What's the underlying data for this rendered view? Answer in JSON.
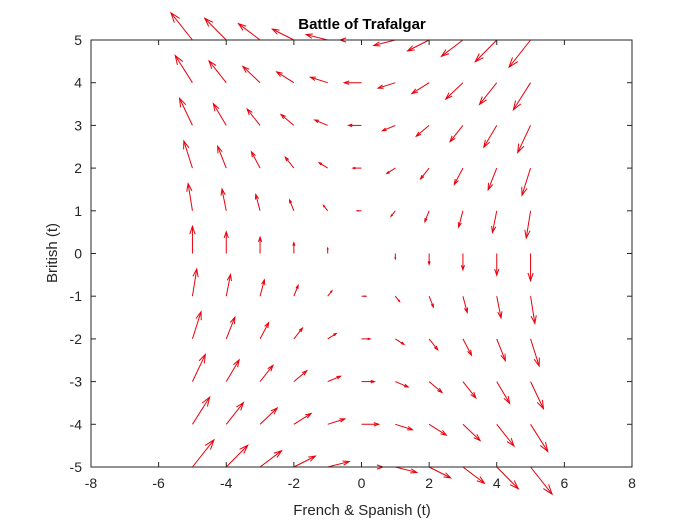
{
  "chart_data": {
    "type": "quiver",
    "title": "Battle of Trafalgar",
    "xlabel": "French & Spanish (t)",
    "ylabel": "British (t)",
    "xlim": [
      -8,
      8
    ],
    "ylim": [
      -5,
      5
    ],
    "xticks": [
      "-8",
      "-6",
      "-4",
      "-2",
      "0",
      "2",
      "4",
      "6",
      "8"
    ],
    "yticks": [
      "5",
      "4",
      "3",
      "2",
      "1",
      "0",
      "-1",
      "-2",
      "-3",
      "-4",
      "-5"
    ],
    "grid": false,
    "arrow_color": "#e8000b",
    "field": {
      "x_values": [
        -5,
        -4,
        -3,
        -2,
        -1,
        0,
        1,
        2,
        3,
        4,
        5
      ],
      "y_values": [
        -5,
        -4,
        -3,
        -2,
        -1,
        0,
        1,
        2,
        3,
        4,
        5
      ],
      "u_equation": "-y",
      "v_equation": "-x",
      "arrow_scale": 0.9
    }
  }
}
